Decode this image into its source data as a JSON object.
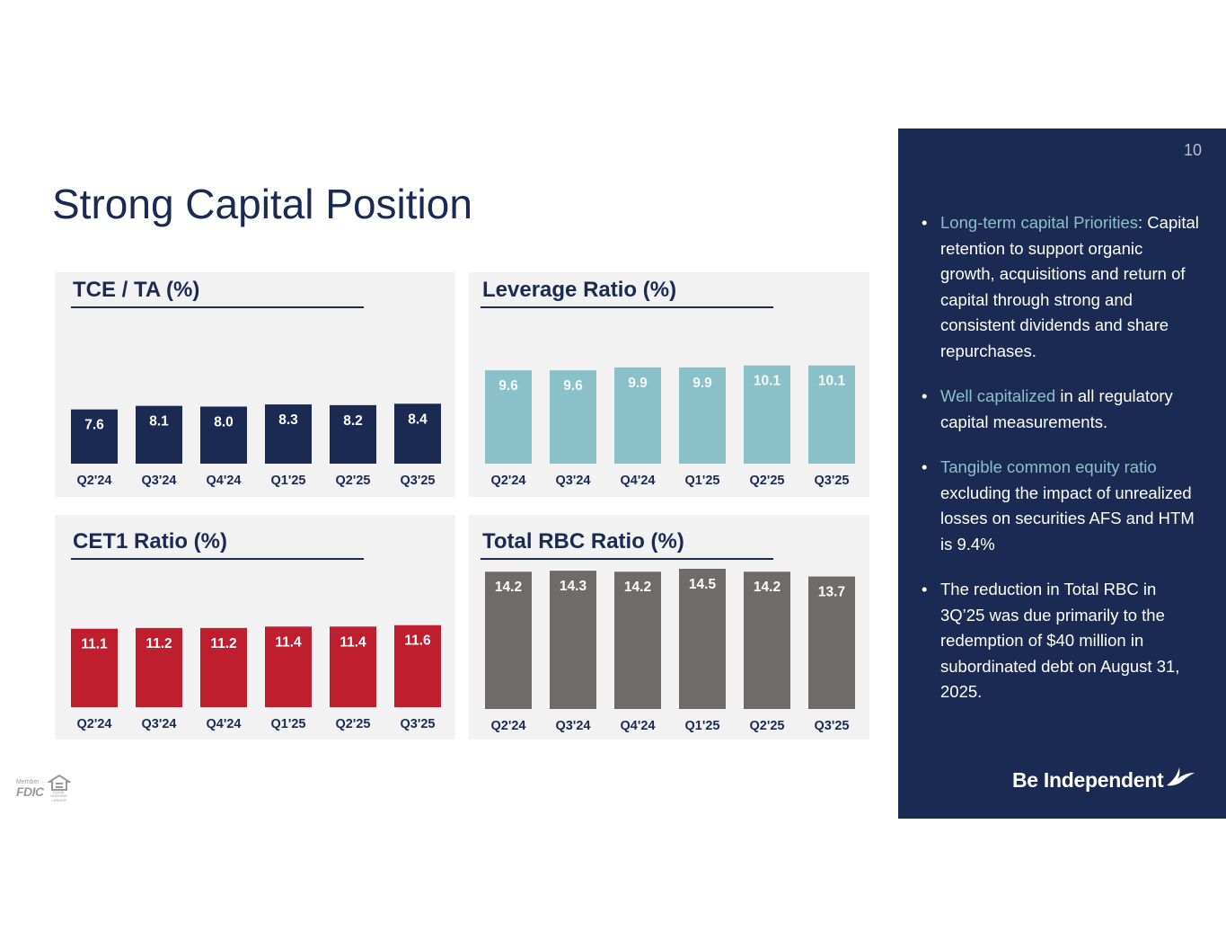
{
  "page": {
    "title": "Strong Capital Position",
    "page_number": "10"
  },
  "chart_data": [
    {
      "type": "bar",
      "title": "TCE / TA (%)",
      "categories": [
        "Q2'24",
        "Q3'24",
        "Q4'24",
        "Q1'25",
        "Q2'25",
        "Q3'25"
      ],
      "values": [
        7.6,
        8.1,
        8.0,
        8.3,
        8.2,
        8.4
      ],
      "labels": [
        "7.6",
        "8.1",
        "8.0",
        "8.3",
        "8.2",
        "8.4"
      ],
      "ylim": [
        0,
        17
      ],
      "color": "#1b2a52",
      "label_color": "#ffffff",
      "xlabel": "",
      "ylabel": ""
    },
    {
      "type": "bar",
      "title": "Leverage Ratio (%)",
      "categories": [
        "Q2'24",
        "Q3'24",
        "Q4'24",
        "Q1'25",
        "Q2'25",
        "Q3'25"
      ],
      "values": [
        9.6,
        9.6,
        9.9,
        9.9,
        10.1,
        10.1
      ],
      "labels": [
        "9.6",
        "9.6",
        "9.9",
        "9.9",
        "10.1",
        "10.1"
      ],
      "ylim": [
        0,
        11
      ],
      "color": "#8ac0c8",
      "label_color": "#f4f8f9",
      "xlabel": "",
      "ylabel": ""
    },
    {
      "type": "bar",
      "title": "CET1 Ratio (%)",
      "categories": [
        "Q2'24",
        "Q3'24",
        "Q4'24",
        "Q1'25",
        "Q2'25",
        "Q3'25"
      ],
      "values": [
        11.1,
        11.2,
        11.2,
        11.4,
        11.4,
        11.6
      ],
      "labels": [
        "11.1",
        "11.2",
        "11.2",
        "11.4",
        "11.4",
        "11.6"
      ],
      "ylim": [
        0,
        15
      ],
      "color": "#be1e2d",
      "label_color": "#ffffff",
      "xlabel": "",
      "ylabel": ""
    },
    {
      "type": "bar",
      "title": "Total RBC Ratio (%)",
      "categories": [
        "Q2'24",
        "Q3'24",
        "Q4'24",
        "Q1'25",
        "Q2'25",
        "Q3'25"
      ],
      "values": [
        14.2,
        14.3,
        14.2,
        14.5,
        14.2,
        13.7
      ],
      "labels": [
        "14.2",
        "14.3",
        "14.2",
        "14.5",
        "14.2",
        "13.7"
      ],
      "ylim": [
        0,
        14.5
      ],
      "color": "#706b6b",
      "label_color": "#ffffff",
      "xlabel": "",
      "ylabel": ""
    }
  ],
  "sidebar": {
    "bullets": [
      {
        "highlight": "Long-term capital Priorities",
        "text": ": Capital retention to support organic growth, acquisitions and return of capital through strong and consistent dividends and share repurchases."
      },
      {
        "highlight": "Well capitalized",
        "text": " in all regulatory capital measurements."
      },
      {
        "highlight": "Tangible common equity ratio",
        "text": " excluding the impact of unrealized losses on securities AFS and HTM  is 9.4%"
      },
      {
        "highlight": "",
        "text": "The reduction in Total RBC  in 3Q’25 was due primarily to the redemption of $40 million in subordinated debt on August 31, 2025."
      }
    ],
    "brand": "Be Independent"
  },
  "footer": {
    "fdic_member": "Member",
    "fdic": "FDIC",
    "equal_housing": "EQUAL HOUSING LENDER"
  },
  "colors": {
    "navy": "#1b2a52",
    "teal": "#8ac0c8",
    "red": "#be1e2d",
    "gray": "#706b6b",
    "panel_bg": "#f2f2f2"
  }
}
